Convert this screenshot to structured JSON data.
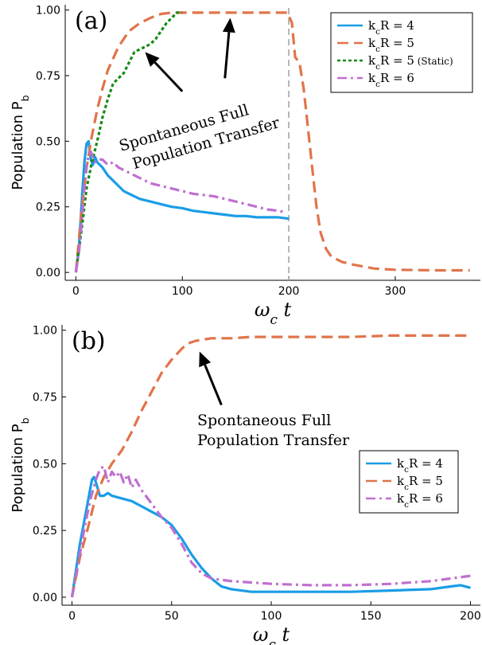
{
  "chart_data": [
    {
      "type": "line",
      "panel_label": "(a)",
      "xlabel": "ω_c t",
      "ylabel": "Population P_b",
      "xlim": [
        -10,
        380
      ],
      "ylim": [
        -0.03,
        1.02
      ],
      "xticks": [
        "0",
        "100",
        "200",
        "300"
      ],
      "yticks": [
        "0.00",
        "0.25",
        "0.50",
        "0.75",
        "1.00"
      ],
      "grid": false,
      "legend_position": "top-right",
      "vline": {
        "x": 200,
        "style": "dashed",
        "color": "#9e9e9e"
      },
      "annotation": {
        "lines": [
          "Spontaneous Full",
          "Population Transfer"
        ],
        "rotation_deg": -16
      },
      "arrows": [
        {
          "from": [
            100,
            0.69
          ],
          "to": [
            65,
            0.84
          ]
        },
        {
          "from": [
            140,
            0.74
          ],
          "to": [
            145,
            0.97
          ]
        }
      ],
      "series": [
        {
          "name": "k_cR = 4",
          "color": "#1a9de6",
          "style": "solid",
          "x": [
            0,
            3,
            6,
            8,
            10,
            12,
            14,
            16,
            18,
            20,
            25,
            30,
            35,
            40,
            45,
            50,
            60,
            70,
            80,
            90,
            100,
            110,
            120,
            130,
            140,
            150,
            160,
            170,
            180,
            190,
            200
          ],
          "y": [
            0.0,
            0.1,
            0.3,
            0.42,
            0.49,
            0.5,
            0.43,
            0.41,
            0.44,
            0.42,
            0.4,
            0.37,
            0.35,
            0.33,
            0.31,
            0.3,
            0.28,
            0.27,
            0.26,
            0.25,
            0.245,
            0.235,
            0.23,
            0.225,
            0.22,
            0.215,
            0.215,
            0.21,
            0.21,
            0.21,
            0.205
          ]
        },
        {
          "name": "k_cR = 5",
          "color": "#e0744a",
          "style": "dashed",
          "x": [
            0,
            5,
            10,
            15,
            20,
            25,
            30,
            40,
            50,
            60,
            70,
            80,
            90,
            95,
            100,
            120,
            150,
            180,
            199,
            203,
            206,
            210,
            214,
            218,
            222,
            226,
            230,
            235,
            240,
            250,
            260,
            280,
            300,
            340,
            370
          ],
          "y": [
            0.0,
            0.22,
            0.4,
            0.52,
            0.62,
            0.7,
            0.77,
            0.86,
            0.92,
            0.95,
            0.97,
            0.985,
            0.99,
            0.99,
            0.99,
            0.99,
            0.99,
            0.99,
            0.99,
            0.95,
            0.82,
            0.8,
            0.7,
            0.55,
            0.4,
            0.25,
            0.15,
            0.09,
            0.06,
            0.04,
            0.03,
            0.015,
            0.01,
            0.008,
            0.008
          ]
        },
        {
          "name": "k_cR = 5 (Static)",
          "color": "#178a17",
          "style": "dotted",
          "x": [
            0,
            5,
            10,
            15,
            20,
            25,
            30,
            35,
            40,
            45,
            50,
            55,
            60,
            65,
            70,
            75,
            80,
            85,
            90,
            95,
            100
          ],
          "y": [
            0.0,
            0.15,
            0.32,
            0.42,
            0.5,
            0.59,
            0.66,
            0.72,
            0.74,
            0.76,
            0.8,
            0.84,
            0.85,
            0.86,
            0.87,
            0.89,
            0.92,
            0.95,
            0.97,
            0.99,
            0.99
          ]
        },
        {
          "name": "k_cR = 6",
          "color": "#c06fd0",
          "style": "dashdot",
          "x": [
            0,
            3,
            6,
            8,
            10,
            12,
            14,
            16,
            18,
            20,
            25,
            30,
            35,
            40,
            50,
            60,
            70,
            80,
            90,
            100,
            110,
            120,
            130,
            140,
            150,
            160,
            170,
            180,
            190,
            196
          ],
          "y": [
            0.0,
            0.08,
            0.22,
            0.32,
            0.4,
            0.45,
            0.46,
            0.44,
            0.42,
            0.43,
            0.43,
            0.41,
            0.42,
            0.4,
            0.38,
            0.36,
            0.34,
            0.33,
            0.32,
            0.31,
            0.3,
            0.295,
            0.29,
            0.28,
            0.27,
            0.26,
            0.25,
            0.24,
            0.235,
            0.23
          ]
        }
      ]
    },
    {
      "type": "line",
      "panel_label": "(b)",
      "xlabel": "ω_c t",
      "ylabel": "Population P_b",
      "xlim": [
        -5,
        205
      ],
      "ylim": [
        -0.03,
        1.02
      ],
      "xticks": [
        "0",
        "50",
        "100",
        "150",
        "200"
      ],
      "yticks": [
        "0.00",
        "0.25",
        "0.50",
        "0.75",
        "1.00"
      ],
      "grid": false,
      "legend_position": "right",
      "annotation": {
        "lines": [
          "Spontaneous Full",
          "Population Transfer"
        ],
        "rotation_deg": 0
      },
      "arrows": [
        {
          "from": [
            75,
            0.72
          ],
          "to": [
            64,
            0.92
          ]
        }
      ],
      "series": [
        {
          "name": "k_cR = 4",
          "color": "#1a9de6",
          "style": "solid",
          "x": [
            0,
            2,
            4,
            6,
            8,
            10,
            11,
            12,
            14,
            16,
            18,
            20,
            25,
            30,
            35,
            40,
            45,
            50,
            55,
            60,
            65,
            70,
            75,
            80,
            85,
            90,
            100,
            120,
            140,
            160,
            180,
            190,
            195,
            200
          ],
          "y": [
            0.0,
            0.1,
            0.2,
            0.28,
            0.36,
            0.44,
            0.45,
            0.43,
            0.38,
            0.38,
            0.39,
            0.38,
            0.37,
            0.36,
            0.34,
            0.32,
            0.3,
            0.27,
            0.22,
            0.16,
            0.11,
            0.07,
            0.04,
            0.03,
            0.025,
            0.02,
            0.02,
            0.02,
            0.02,
            0.025,
            0.03,
            0.04,
            0.045,
            0.035
          ]
        },
        {
          "name": "k_cR = 5",
          "color": "#e0744a",
          "style": "dashed",
          "x": [
            0,
            4,
            8,
            12,
            16,
            20,
            25,
            30,
            35,
            40,
            45,
            50,
            55,
            58,
            62,
            66,
            70,
            80,
            90,
            100,
            120,
            140,
            160,
            180,
            200
          ],
          "y": [
            0.0,
            0.15,
            0.26,
            0.38,
            0.45,
            0.5,
            0.55,
            0.62,
            0.7,
            0.77,
            0.84,
            0.89,
            0.93,
            0.95,
            0.96,
            0.965,
            0.97,
            0.97,
            0.975,
            0.975,
            0.975,
            0.975,
            0.98,
            0.98,
            0.98
          ]
        },
        {
          "name": "k_cR = 6",
          "color": "#c06fd0",
          "style": "dashdot",
          "x": [
            0,
            3,
            6,
            9,
            12,
            14,
            16,
            18,
            20,
            22,
            24,
            26,
            28,
            30,
            32,
            35,
            40,
            45,
            50,
            55,
            60,
            65,
            70,
            80,
            90,
            100,
            120,
            140,
            160,
            180,
            190,
            200
          ],
          "y": [
            0.0,
            0.12,
            0.25,
            0.36,
            0.44,
            0.48,
            0.49,
            0.43,
            0.47,
            0.45,
            0.47,
            0.43,
            0.46,
            0.41,
            0.44,
            0.4,
            0.35,
            0.3,
            0.26,
            0.2,
            0.13,
            0.09,
            0.07,
            0.06,
            0.055,
            0.05,
            0.045,
            0.045,
            0.05,
            0.06,
            0.07,
            0.08
          ]
        }
      ]
    }
  ]
}
